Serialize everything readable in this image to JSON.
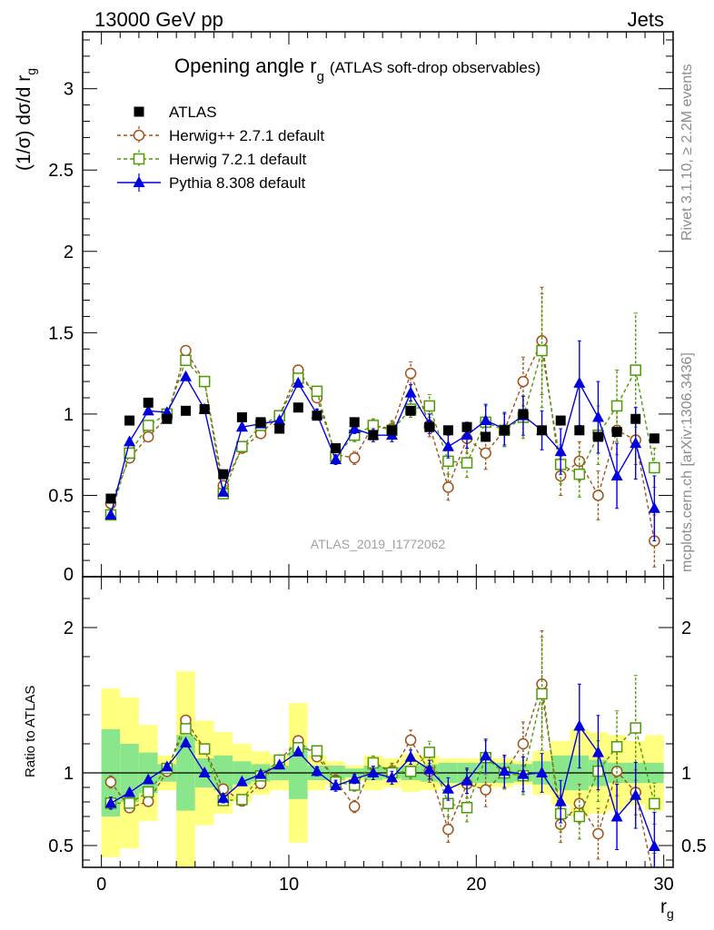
{
  "header": {
    "left": "13000 GeV pp",
    "right": "Jets"
  },
  "side_labels": {
    "rivet": "Rivet 3.1.10, ≥ 2.2M events",
    "mcplots": "mcplots.cern.ch [arXiv:1306.3436]"
  },
  "watermark": "ATLAS_2019_I1772062",
  "chart_data": {
    "type": "scatter",
    "title": "Opening angle r",
    "title_sub": "g",
    "title_suffix": "(ATLAS soft-drop observables)",
    "ylabel": "(1/σ) dσ/d r",
    "ylabel_sub": "g",
    "xlabel": "r",
    "xlabel_sub": "g",
    "ratio_ylabel": "Ratio to ATLAS",
    "xlim": [
      -1,
      30.5
    ],
    "ylim": [
      0,
      3.35
    ],
    "ratio_ylim": [
      0.35,
      2.35
    ],
    "x_ticks": [
      0,
      10,
      20,
      30
    ],
    "y_ticks": [
      0.5,
      1,
      1.5,
      2,
      2.5,
      3
    ],
    "y_tick_labels": [
      "0.5",
      "1",
      "1.5",
      "2",
      "2.5",
      "3"
    ],
    "y_zero_label": "0",
    "ratio_ticks": [
      0.5,
      1,
      2
    ],
    "ratio_tick_labels": [
      "0.5",
      "1",
      "2"
    ],
    "x": [
      0.5,
      1.5,
      2.5,
      3.5,
      4.5,
      5.5,
      6.5,
      7.5,
      8.5,
      9.5,
      10.5,
      11.5,
      12.5,
      13.5,
      14.5,
      15.5,
      16.5,
      17.5,
      18.5,
      19.5,
      20.5,
      21.5,
      22.5,
      23.5,
      24.5,
      25.5,
      26.5,
      27.5,
      28.5,
      29.5
    ],
    "data": {
      "name": "ATLAS",
      "values": [
        0.48,
        0.96,
        1.07,
        0.97,
        1.02,
        1.03,
        0.63,
        0.98,
        0.95,
        0.91,
        1.04,
        0.99,
        0.79,
        0.95,
        0.87,
        0.9,
        1.02,
        0.92,
        0.9,
        0.92,
        0.86,
        0.9,
        1.0,
        0.9,
        0.96,
        0.9,
        0.86,
        0.89,
        0.97,
        0.85
      ],
      "band_inner": [
        0.3,
        0.2,
        0.14,
        0.06,
        0.26,
        0.1,
        0.12,
        0.08,
        0.06,
        0.05,
        0.18,
        0.05,
        0.05,
        0.03,
        0.05,
        0.04,
        0.05,
        0.06,
        0.07,
        0.07,
        0.07,
        0.07,
        0.06,
        0.08,
        0.12,
        0.12,
        0.09,
        0.07,
        0.07,
        0.07
      ],
      "band_outer": [
        0.58,
        0.52,
        0.33,
        0.12,
        0.7,
        0.36,
        0.28,
        0.2,
        0.15,
        0.12,
        0.48,
        0.12,
        0.08,
        0.05,
        0.12,
        0.1,
        0.13,
        0.12,
        0.1,
        0.1,
        0.1,
        0.1,
        0.08,
        0.15,
        0.22,
        0.3,
        0.28,
        0.26,
        0.22,
        0.26
      ]
    },
    "series": [
      {
        "name": "Herwig++ 2.7.1 default",
        "color": "#a0521c",
        "marker": "circle",
        "dashed": true,
        "values": [
          0.45,
          0.73,
          0.86,
          0.98,
          1.39,
          1.2,
          0.56,
          0.79,
          0.88,
          0.99,
          1.27,
          1.1,
          0.75,
          0.73,
          0.93,
          0.91,
          1.25,
          0.93,
          0.55,
          0.85,
          0.76,
          0.9,
          1.2,
          1.45,
          0.62,
          0.71,
          0.5,
          0.9,
          0.84,
          0.22
        ],
        "errors": [
          0.02,
          0.02,
          0.02,
          0.02,
          0.02,
          0.02,
          0.02,
          0.02,
          0.02,
          0.02,
          0.02,
          0.03,
          0.03,
          0.04,
          0.04,
          0.05,
          0.07,
          0.07,
          0.08,
          0.09,
          0.1,
          0.1,
          0.15,
          0.33,
          0.12,
          0.12,
          0.15,
          0.15,
          0.15,
          0.16
        ]
      },
      {
        "name": "Herwig 7.2.1 default",
        "color": "#4e9a06",
        "marker": "square",
        "dashed": true,
        "values": [
          0.38,
          0.76,
          0.93,
          1.0,
          1.33,
          1.2,
          0.51,
          0.8,
          0.93,
          0.99,
          1.22,
          1.14,
          0.74,
          0.87,
          0.93,
          0.9,
          1.03,
          1.05,
          0.71,
          0.7,
          0.95,
          0.9,
          0.98,
          1.39,
          0.69,
          0.63,
          0.87,
          1.05,
          1.27,
          0.67
        ],
        "errors": [
          0.02,
          0.02,
          0.02,
          0.02,
          0.02,
          0.02,
          0.02,
          0.02,
          0.02,
          0.02,
          0.02,
          0.03,
          0.03,
          0.04,
          0.04,
          0.05,
          0.05,
          0.07,
          0.08,
          0.09,
          0.1,
          0.1,
          0.13,
          0.35,
          0.12,
          0.14,
          0.18,
          0.22,
          0.35,
          0.12
        ]
      },
      {
        "name": "Pythia 8.308 default",
        "color": "#0000dd",
        "marker": "triangle",
        "dashed": false,
        "values": [
          0.38,
          0.83,
          1.02,
          1.01,
          1.23,
          1.03,
          0.52,
          0.92,
          0.94,
          0.96,
          1.19,
          1.0,
          0.72,
          0.91,
          0.87,
          0.87,
          1.13,
          0.94,
          0.8,
          0.87,
          0.96,
          0.91,
          0.99,
          0.9,
          0.77,
          1.19,
          0.98,
          0.62,
          0.82,
          0.42
        ],
        "errors": [
          0.02,
          0.02,
          0.02,
          0.02,
          0.02,
          0.02,
          0.02,
          0.02,
          0.02,
          0.02,
          0.02,
          0.03,
          0.03,
          0.03,
          0.04,
          0.04,
          0.05,
          0.06,
          0.07,
          0.08,
          0.1,
          0.1,
          0.12,
          0.12,
          0.14,
          0.26,
          0.22,
          0.2,
          0.22,
          0.2
        ]
      }
    ]
  }
}
